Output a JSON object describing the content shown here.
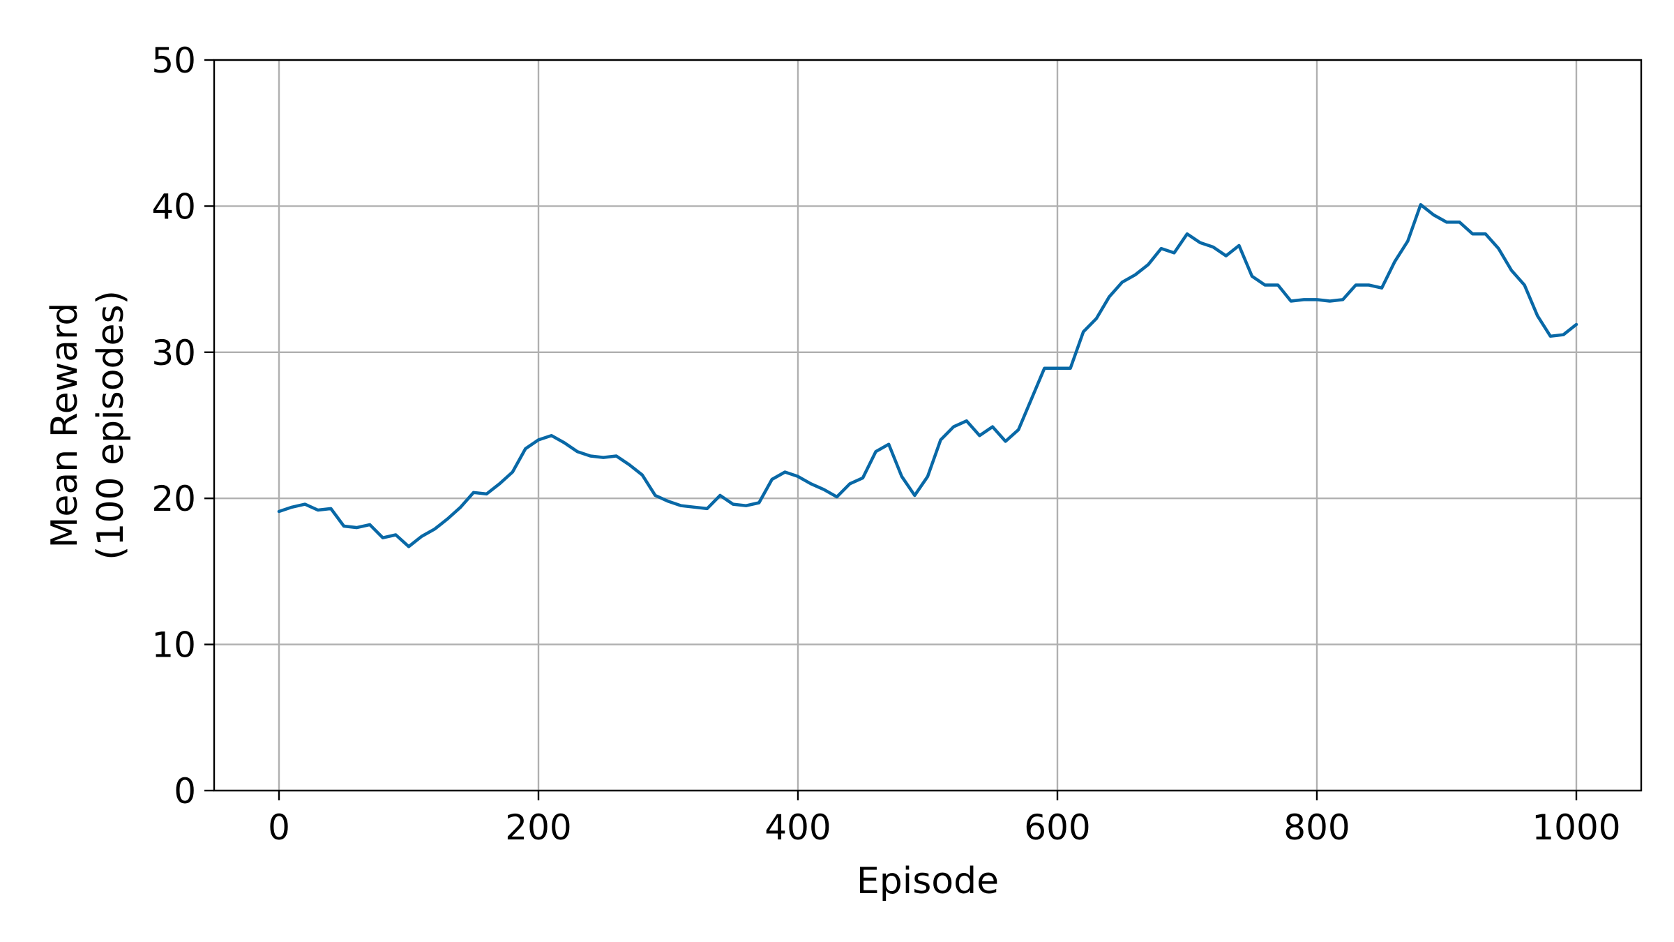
{
  "chart_data": {
    "type": "line",
    "xlabel": "Episode",
    "ylabel_lines": [
      "Mean Reward",
      "(100 episodes)"
    ],
    "xlim": [
      -50,
      1050
    ],
    "ylim": [
      0,
      50
    ],
    "x_ticks": [
      0,
      200,
      400,
      600,
      800,
      1000
    ],
    "y_ticks": [
      0,
      10,
      20,
      30,
      40,
      50
    ],
    "x_tick_labels": [
      "0",
      "200",
      "400",
      "600",
      "800",
      "1000"
    ],
    "y_tick_labels": [
      "0",
      "10",
      "20",
      "30",
      "40",
      "50"
    ],
    "grid": true,
    "line_color": "#0868a6",
    "series": [
      {
        "x": [
          0,
          10,
          20,
          30,
          40,
          50,
          60,
          70,
          80,
          90,
          100,
          110,
          120,
          130,
          140,
          150,
          160,
          170,
          180,
          190,
          200,
          210,
          220,
          230,
          240,
          250,
          260,
          270,
          280,
          290,
          300,
          310,
          320,
          330,
          340,
          350,
          360,
          370,
          380,
          390,
          400,
          410,
          420,
          430,
          440,
          450,
          460,
          470,
          480,
          490,
          500,
          510,
          520,
          530,
          540,
          550,
          560,
          570,
          580,
          590,
          600,
          610,
          620,
          630,
          640,
          650,
          660,
          670,
          680,
          690,
          700,
          710,
          720,
          730,
          740,
          750,
          760,
          770,
          780,
          790,
          800,
          810,
          820,
          830,
          840,
          850,
          860,
          870,
          880,
          890,
          900,
          910,
          920,
          930,
          940,
          950,
          960,
          970,
          980,
          990,
          1000
        ],
        "y": [
          19.1,
          19.4,
          19.6,
          19.2,
          19.3,
          18.1,
          18.0,
          18.2,
          17.3,
          17.5,
          16.7,
          17.4,
          17.9,
          18.6,
          19.4,
          20.4,
          20.3,
          21.0,
          21.8,
          23.4,
          24.0,
          24.3,
          23.8,
          23.2,
          22.9,
          22.8,
          22.9,
          22.3,
          21.6,
          20.2,
          19.8,
          19.5,
          19.4,
          19.3,
          20.2,
          19.6,
          19.5,
          19.7,
          21.3,
          21.8,
          21.5,
          21.0,
          20.6,
          20.1,
          21.0,
          21.4,
          23.2,
          23.7,
          21.5,
          20.2,
          21.5,
          24.0,
          24.9,
          25.3,
          24.3,
          24.9,
          23.9,
          24.7,
          26.8,
          28.9,
          28.9,
          28.9,
          31.4,
          32.3,
          33.8,
          34.8,
          35.3,
          36.0,
          37.1,
          36.8,
          38.1,
          37.5,
          37.2,
          36.6,
          37.3,
          35.2,
          34.6,
          34.6,
          33.5,
          33.6,
          33.6,
          33.5,
          33.6,
          34.6,
          34.6,
          34.4,
          36.2,
          37.6,
          40.1,
          39.4,
          38.9,
          38.9,
          38.1,
          38.1,
          37.1,
          35.6,
          34.6,
          32.5,
          31.1,
          31.2,
          31.9
        ]
      }
    ]
  }
}
